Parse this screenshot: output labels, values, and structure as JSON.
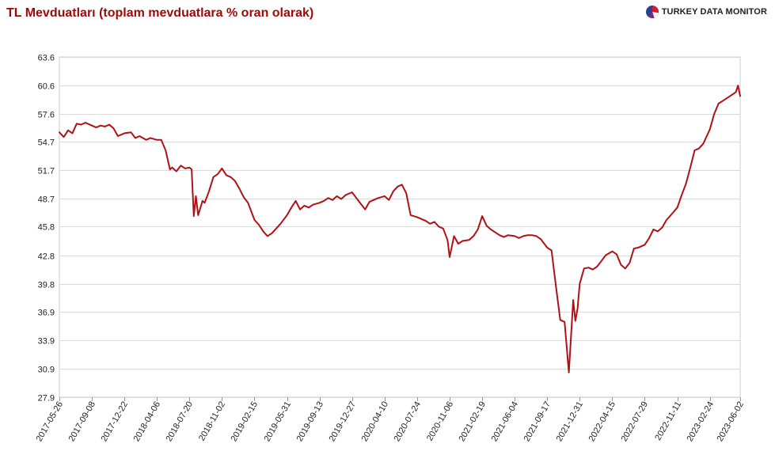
{
  "title": "TL Mevduatları (toplam mevduatlara % oran olarak)",
  "brand": {
    "name": "TURKEY DATA MONITOR",
    "icon": "pie-logo-icon"
  },
  "colors": {
    "line": "#b01116",
    "title": "#9b0a0a",
    "grid": "#d9d9d9",
    "axis": "#cccccc"
  },
  "chart_data": {
    "type": "line",
    "title": "TL Mevduatları (toplam mevduatlara % oran olarak)",
    "xlabel": "",
    "ylabel": "",
    "ylim": [
      27.9,
      63.6
    ],
    "yticks": [
      "63.6",
      "60.6",
      "57.6",
      "54.7",
      "51.7",
      "48.7",
      "45.8",
      "42.8",
      "39.8",
      "36.9",
      "33.9",
      "30.9",
      "27.9"
    ],
    "xticks": [
      "2017-05-26",
      "2017-09-08",
      "2017-12-22",
      "2018-04-06",
      "2018-07-20",
      "2018-11-02",
      "2019-02-15",
      "2019-05-31",
      "2019-09-13",
      "2019-12-27",
      "2020-04-10",
      "2020-07-24",
      "2020-11-06",
      "2021-02-19",
      "2021-06-04",
      "2021-09-17",
      "2021-12-31",
      "2022-04-15",
      "2022-07-29",
      "2022-11-11",
      "2023-02-24",
      "2023-06-02"
    ],
    "grid": true,
    "series": [
      {
        "x": [
          "2017-05-26",
          "2017-06-09",
          "2017-06-23",
          "2017-07-07",
          "2017-07-21",
          "2017-08-04",
          "2017-08-18",
          "2017-09-08",
          "2017-09-22",
          "2017-10-06",
          "2017-10-20",
          "2017-11-03",
          "2017-11-17",
          "2017-12-01",
          "2017-12-22",
          "2018-01-12",
          "2018-01-26",
          "2018-02-09",
          "2018-03-02",
          "2018-03-16",
          "2018-04-06",
          "2018-04-20",
          "2018-05-04",
          "2018-05-18",
          "2018-05-25",
          "2018-06-08",
          "2018-06-22",
          "2018-07-06",
          "2018-07-20",
          "2018-07-27",
          "2018-08-03",
          "2018-08-10",
          "2018-08-17",
          "2018-08-31",
          "2018-09-07",
          "2018-09-21",
          "2018-10-05",
          "2018-10-19",
          "2018-11-02",
          "2018-11-16",
          "2018-11-30",
          "2018-12-14",
          "2018-12-28",
          "2019-01-11",
          "2019-01-25",
          "2019-02-15",
          "2019-03-01",
          "2019-03-15",
          "2019-03-29",
          "2019-04-12",
          "2019-04-26",
          "2019-05-10",
          "2019-05-17",
          "2019-05-31",
          "2019-06-14",
          "2019-06-28",
          "2019-07-12",
          "2019-07-26",
          "2019-08-09",
          "2019-08-23",
          "2019-09-13",
          "2019-09-27",
          "2019-10-11",
          "2019-10-25",
          "2019-11-08",
          "2019-11-22",
          "2019-12-06",
          "2019-12-27",
          "2020-01-10",
          "2020-01-24",
          "2020-02-07",
          "2020-02-21",
          "2020-03-06",
          "2020-03-20",
          "2020-04-10",
          "2020-04-24",
          "2020-05-08",
          "2020-05-22",
          "2020-06-05",
          "2020-06-19",
          "2020-07-03",
          "2020-07-24",
          "2020-08-07",
          "2020-08-21",
          "2020-09-04",
          "2020-09-18",
          "2020-10-02",
          "2020-10-16",
          "2020-10-30",
          "2020-11-06",
          "2020-11-20",
          "2020-12-04",
          "2020-12-18",
          "2021-01-08",
          "2021-01-22",
          "2021-02-05",
          "2021-02-19",
          "2021-03-05",
          "2021-03-19",
          "2021-04-02",
          "2021-04-16",
          "2021-04-30",
          "2021-05-14",
          "2021-06-04",
          "2021-06-18",
          "2021-07-02",
          "2021-07-16",
          "2021-07-30",
          "2021-08-13",
          "2021-08-27",
          "2021-09-17",
          "2021-10-01",
          "2021-10-15",
          "2021-10-29",
          "2021-11-12",
          "2021-11-26",
          "2021-12-10",
          "2021-12-17",
          "2021-12-24",
          "2021-12-31",
          "2022-01-14",
          "2022-01-28",
          "2022-02-11",
          "2022-02-25",
          "2022-03-11",
          "2022-03-25",
          "2022-04-15",
          "2022-04-29",
          "2022-05-13",
          "2022-05-27",
          "2022-06-10",
          "2022-06-24",
          "2022-07-08",
          "2022-07-29",
          "2022-08-12",
          "2022-08-26",
          "2022-09-09",
          "2022-09-23",
          "2022-10-07",
          "2022-10-21",
          "2022-11-11",
          "2022-11-25",
          "2022-12-09",
          "2022-12-23",
          "2023-01-06",
          "2023-01-20",
          "2023-02-03",
          "2023-02-24",
          "2023-03-10",
          "2023-03-24",
          "2023-04-07",
          "2023-04-21",
          "2023-05-05",
          "2023-05-19",
          "2023-05-26",
          "2023-06-02"
        ],
        "y": [
          55.7,
          55.2,
          55.9,
          55.6,
          56.6,
          56.5,
          56.7,
          56.4,
          56.2,
          56.4,
          56.3,
          56.5,
          56.1,
          55.3,
          55.6,
          55.7,
          55.1,
          55.3,
          54.9,
          55.1,
          54.9,
          54.9,
          53.8,
          51.8,
          52.0,
          51.6,
          52.2,
          51.9,
          52.0,
          51.8,
          46.9,
          49.0,
          47.0,
          48.5,
          48.3,
          49.5,
          51.0,
          51.3,
          51.9,
          51.2,
          51.0,
          50.6,
          49.8,
          48.9,
          48.3,
          46.5,
          46.0,
          45.3,
          44.8,
          45.1,
          45.6,
          46.1,
          46.4,
          47.0,
          47.8,
          48.5,
          47.6,
          48.0,
          47.8,
          48.1,
          48.3,
          48.5,
          48.8,
          48.6,
          49.0,
          48.7,
          49.1,
          49.4,
          48.8,
          48.2,
          47.6,
          48.4,
          48.6,
          48.8,
          49.0,
          48.6,
          49.5,
          50.0,
          50.2,
          49.3,
          47.0,
          46.8,
          46.6,
          46.4,
          46.1,
          46.3,
          45.8,
          45.6,
          44.4,
          42.6,
          44.8,
          44.0,
          44.3,
          44.4,
          44.8,
          45.5,
          46.9,
          45.9,
          45.5,
          45.2,
          44.9,
          44.7,
          44.9,
          44.8,
          44.6,
          44.8,
          44.9,
          44.9,
          44.8,
          44.5,
          43.6,
          43.3,
          39.6,
          36.0,
          35.8,
          30.5,
          38.1,
          35.9,
          37.2,
          39.8,
          41.4,
          41.5,
          41.3,
          41.6,
          42.2,
          42.8,
          43.2,
          42.9,
          41.8,
          41.4,
          42.0,
          43.5,
          43.6,
          43.9,
          44.6,
          45.5,
          45.3,
          45.7,
          46.5,
          47.0,
          47.8,
          49.1,
          50.3,
          52.0,
          53.8,
          54.0,
          54.5,
          56.0,
          57.6,
          58.7,
          59.0,
          59.3,
          59.6,
          59.9,
          60.6,
          59.5
        ]
      }
    ]
  }
}
